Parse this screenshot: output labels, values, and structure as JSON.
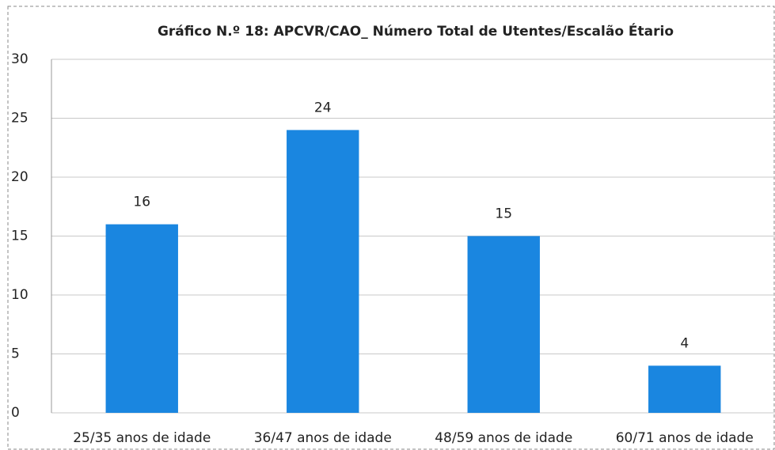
{
  "chart_data": {
    "type": "bar",
    "title": "Gráfico N.º 18: APCVR/CAO_ Número Total de Utentes/Escalão Étario",
    "categories": [
      "25/35 anos de idade",
      "36/47 anos de idade",
      "48/59 anos de idade",
      "60/71 anos de idade"
    ],
    "values": [
      16,
      24,
      15,
      4
    ],
    "color": "#1a86e0",
    "ylim": [
      0,
      30
    ],
    "yticks": [
      0,
      5,
      10,
      15,
      20,
      25,
      30
    ],
    "grid": true
  }
}
